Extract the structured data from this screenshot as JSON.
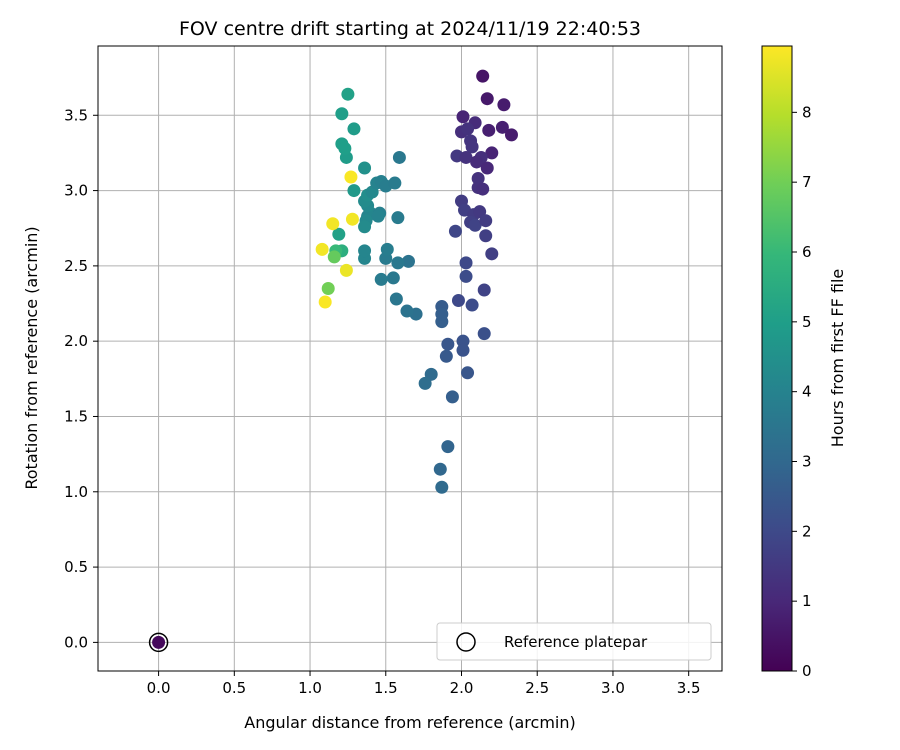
{
  "chart_data": {
    "type": "scatter",
    "title": "FOV centre drift starting at 2024/11/19 22:40:53",
    "xlabel": "Angular distance from reference (arcmin)",
    "ylabel": "Rotation from reference (arcmin)",
    "xlim": [
      -0.4,
      3.72
    ],
    "ylim": [
      -0.19,
      3.96
    ],
    "xticks": [
      0.0,
      0.5,
      1.0,
      1.5,
      2.0,
      2.5,
      3.0,
      3.5
    ],
    "xtick_labels": [
      "0.0",
      "0.5",
      "1.0",
      "1.5",
      "2.0",
      "2.5",
      "3.0",
      "3.5"
    ],
    "yticks": [
      0.0,
      0.5,
      1.0,
      1.5,
      2.0,
      2.5,
      3.0,
      3.5
    ],
    "ytick_labels": [
      "0.0",
      "0.5",
      "1.0",
      "1.5",
      "2.0",
      "2.5",
      "3.0",
      "3.5"
    ],
    "grid": true,
    "legend": {
      "label": "Reference platepar",
      "position": "lower-right"
    },
    "colorbar": {
      "label": "Hours from first FF file",
      "min": 0,
      "max": 8.95,
      "ticks": [
        0,
        1,
        2,
        3,
        4,
        5,
        6,
        7,
        8
      ],
      "colormap": "viridis",
      "stops": [
        "#440154",
        "#482878",
        "#3e4989",
        "#31688e",
        "#26828e",
        "#1f9e89",
        "#35b779",
        "#6ece58",
        "#b5de2b",
        "#fde725"
      ]
    },
    "reference_point": {
      "x": 0.0,
      "y": 0.0,
      "c": 0.2
    },
    "points": [
      {
        "x": 2.14,
        "y": 3.76,
        "c": 0.5
      },
      {
        "x": 2.17,
        "y": 3.61,
        "c": 0.6
      },
      {
        "x": 2.28,
        "y": 3.57,
        "c": 0.7
      },
      {
        "x": 2.01,
        "y": 3.49,
        "c": 0.9
      },
      {
        "x": 2.09,
        "y": 3.45,
        "c": 1.1
      },
      {
        "x": 2.27,
        "y": 3.42,
        "c": 0.8
      },
      {
        "x": 2.18,
        "y": 3.4,
        "c": 0.8
      },
      {
        "x": 2.33,
        "y": 3.37,
        "c": 0.7
      },
      {
        "x": 2.0,
        "y": 3.39,
        "c": 1.2
      },
      {
        "x": 2.04,
        "y": 3.41,
        "c": 1.3
      },
      {
        "x": 2.06,
        "y": 3.33,
        "c": 1.4
      },
      {
        "x": 2.07,
        "y": 3.29,
        "c": 1.4
      },
      {
        "x": 2.2,
        "y": 3.25,
        "c": 0.9
      },
      {
        "x": 2.13,
        "y": 3.22,
        "c": 1.2
      },
      {
        "x": 1.97,
        "y": 3.23,
        "c": 1.5
      },
      {
        "x": 2.03,
        "y": 3.22,
        "c": 1.3
      },
      {
        "x": 2.1,
        "y": 3.19,
        "c": 1.1
      },
      {
        "x": 2.17,
        "y": 3.15,
        "c": 1.0
      },
      {
        "x": 2.11,
        "y": 3.08,
        "c": 1.3
      },
      {
        "x": 2.11,
        "y": 3.02,
        "c": 1.3
      },
      {
        "x": 2.14,
        "y": 3.01,
        "c": 1.2
      },
      {
        "x": 2.0,
        "y": 2.93,
        "c": 1.6
      },
      {
        "x": 2.02,
        "y": 2.87,
        "c": 1.7
      },
      {
        "x": 2.08,
        "y": 2.84,
        "c": 1.6
      },
      {
        "x": 2.12,
        "y": 2.86,
        "c": 1.5
      },
      {
        "x": 2.06,
        "y": 2.79,
        "c": 1.7
      },
      {
        "x": 2.09,
        "y": 2.77,
        "c": 1.8
      },
      {
        "x": 2.16,
        "y": 2.8,
        "c": 1.6
      },
      {
        "x": 2.16,
        "y": 2.7,
        "c": 1.7
      },
      {
        "x": 1.96,
        "y": 2.73,
        "c": 1.9
      },
      {
        "x": 2.2,
        "y": 2.58,
        "c": 1.7
      },
      {
        "x": 2.03,
        "y": 2.52,
        "c": 2.0
      },
      {
        "x": 2.03,
        "y": 2.43,
        "c": 2.1
      },
      {
        "x": 2.15,
        "y": 2.34,
        "c": 1.8
      },
      {
        "x": 1.98,
        "y": 2.27,
        "c": 2.0
      },
      {
        "x": 2.07,
        "y": 2.24,
        "c": 2.1
      },
      {
        "x": 2.15,
        "y": 2.05,
        "c": 2.2
      },
      {
        "x": 2.01,
        "y": 2.0,
        "c": 2.3
      },
      {
        "x": 2.01,
        "y": 1.94,
        "c": 2.3
      },
      {
        "x": 1.91,
        "y": 1.98,
        "c": 2.4
      },
      {
        "x": 1.9,
        "y": 1.9,
        "c": 2.5
      },
      {
        "x": 2.04,
        "y": 1.79,
        "c": 2.4
      },
      {
        "x": 1.94,
        "y": 1.63,
        "c": 2.7
      },
      {
        "x": 1.87,
        "y": 2.23,
        "c": 2.6
      },
      {
        "x": 1.87,
        "y": 2.13,
        "c": 2.7
      },
      {
        "x": 1.87,
        "y": 2.18,
        "c": 2.7
      },
      {
        "x": 1.91,
        "y": 1.3,
        "c": 2.9
      },
      {
        "x": 1.86,
        "y": 1.15,
        "c": 3.0
      },
      {
        "x": 1.87,
        "y": 1.03,
        "c": 3.1
      },
      {
        "x": 1.8,
        "y": 1.78,
        "c": 3.1
      },
      {
        "x": 1.76,
        "y": 1.72,
        "c": 3.2
      },
      {
        "x": 1.7,
        "y": 2.18,
        "c": 3.3
      },
      {
        "x": 1.64,
        "y": 2.2,
        "c": 3.4
      },
      {
        "x": 1.57,
        "y": 2.28,
        "c": 3.5
      },
      {
        "x": 1.55,
        "y": 2.42,
        "c": 3.6
      },
      {
        "x": 1.47,
        "y": 2.41,
        "c": 3.7
      },
      {
        "x": 1.65,
        "y": 2.53,
        "c": 3.4
      },
      {
        "x": 1.58,
        "y": 2.52,
        "c": 3.6
      },
      {
        "x": 1.5,
        "y": 2.55,
        "c": 3.7
      },
      {
        "x": 1.51,
        "y": 2.61,
        "c": 3.8
      },
      {
        "x": 1.36,
        "y": 2.55,
        "c": 4.1
      },
      {
        "x": 1.36,
        "y": 2.6,
        "c": 4.1
      },
      {
        "x": 1.58,
        "y": 2.82,
        "c": 3.7
      },
      {
        "x": 1.38,
        "y": 2.83,
        "c": 4.0
      },
      {
        "x": 1.4,
        "y": 2.85,
        "c": 4.1
      },
      {
        "x": 1.46,
        "y": 2.85,
        "c": 3.9
      },
      {
        "x": 1.45,
        "y": 2.83,
        "c": 4.0
      },
      {
        "x": 1.37,
        "y": 2.8,
        "c": 4.2
      },
      {
        "x": 1.36,
        "y": 2.76,
        "c": 4.3
      },
      {
        "x": 1.38,
        "y": 2.9,
        "c": 4.2
      },
      {
        "x": 1.36,
        "y": 2.93,
        "c": 4.3
      },
      {
        "x": 1.38,
        "y": 2.97,
        "c": 4.4
      },
      {
        "x": 1.41,
        "y": 2.99,
        "c": 4.2
      },
      {
        "x": 1.44,
        "y": 3.05,
        "c": 4.0
      },
      {
        "x": 1.47,
        "y": 3.06,
        "c": 3.9
      },
      {
        "x": 1.5,
        "y": 3.03,
        "c": 3.8
      },
      {
        "x": 1.56,
        "y": 3.05,
        "c": 3.7
      },
      {
        "x": 1.59,
        "y": 3.22,
        "c": 3.6
      },
      {
        "x": 1.36,
        "y": 3.15,
        "c": 4.5
      },
      {
        "x": 1.29,
        "y": 3.0,
        "c": 4.8
      },
      {
        "x": 1.24,
        "y": 3.22,
        "c": 4.9
      },
      {
        "x": 1.21,
        "y": 3.31,
        "c": 5.0
      },
      {
        "x": 1.23,
        "y": 3.28,
        "c": 5.0
      },
      {
        "x": 1.29,
        "y": 3.41,
        "c": 4.9
      },
      {
        "x": 1.21,
        "y": 3.51,
        "c": 5.0
      },
      {
        "x": 1.25,
        "y": 3.64,
        "c": 5.1
      },
      {
        "x": 1.19,
        "y": 2.71,
        "c": 5.1
      },
      {
        "x": 1.21,
        "y": 2.6,
        "c": 5.6
      },
      {
        "x": 1.17,
        "y": 2.6,
        "c": 6.0
      },
      {
        "x": 1.16,
        "y": 2.56,
        "c": 6.8
      },
      {
        "x": 1.12,
        "y": 2.35,
        "c": 7.0
      },
      {
        "x": 1.27,
        "y": 3.09,
        "c": 8.9
      },
      {
        "x": 1.28,
        "y": 2.81,
        "c": 8.8
      },
      {
        "x": 1.15,
        "y": 2.78,
        "c": 8.8
      },
      {
        "x": 1.08,
        "y": 2.61,
        "c": 8.8
      },
      {
        "x": 1.24,
        "y": 2.47,
        "c": 8.7
      },
      {
        "x": 1.1,
        "y": 2.26,
        "c": 8.9
      }
    ]
  }
}
